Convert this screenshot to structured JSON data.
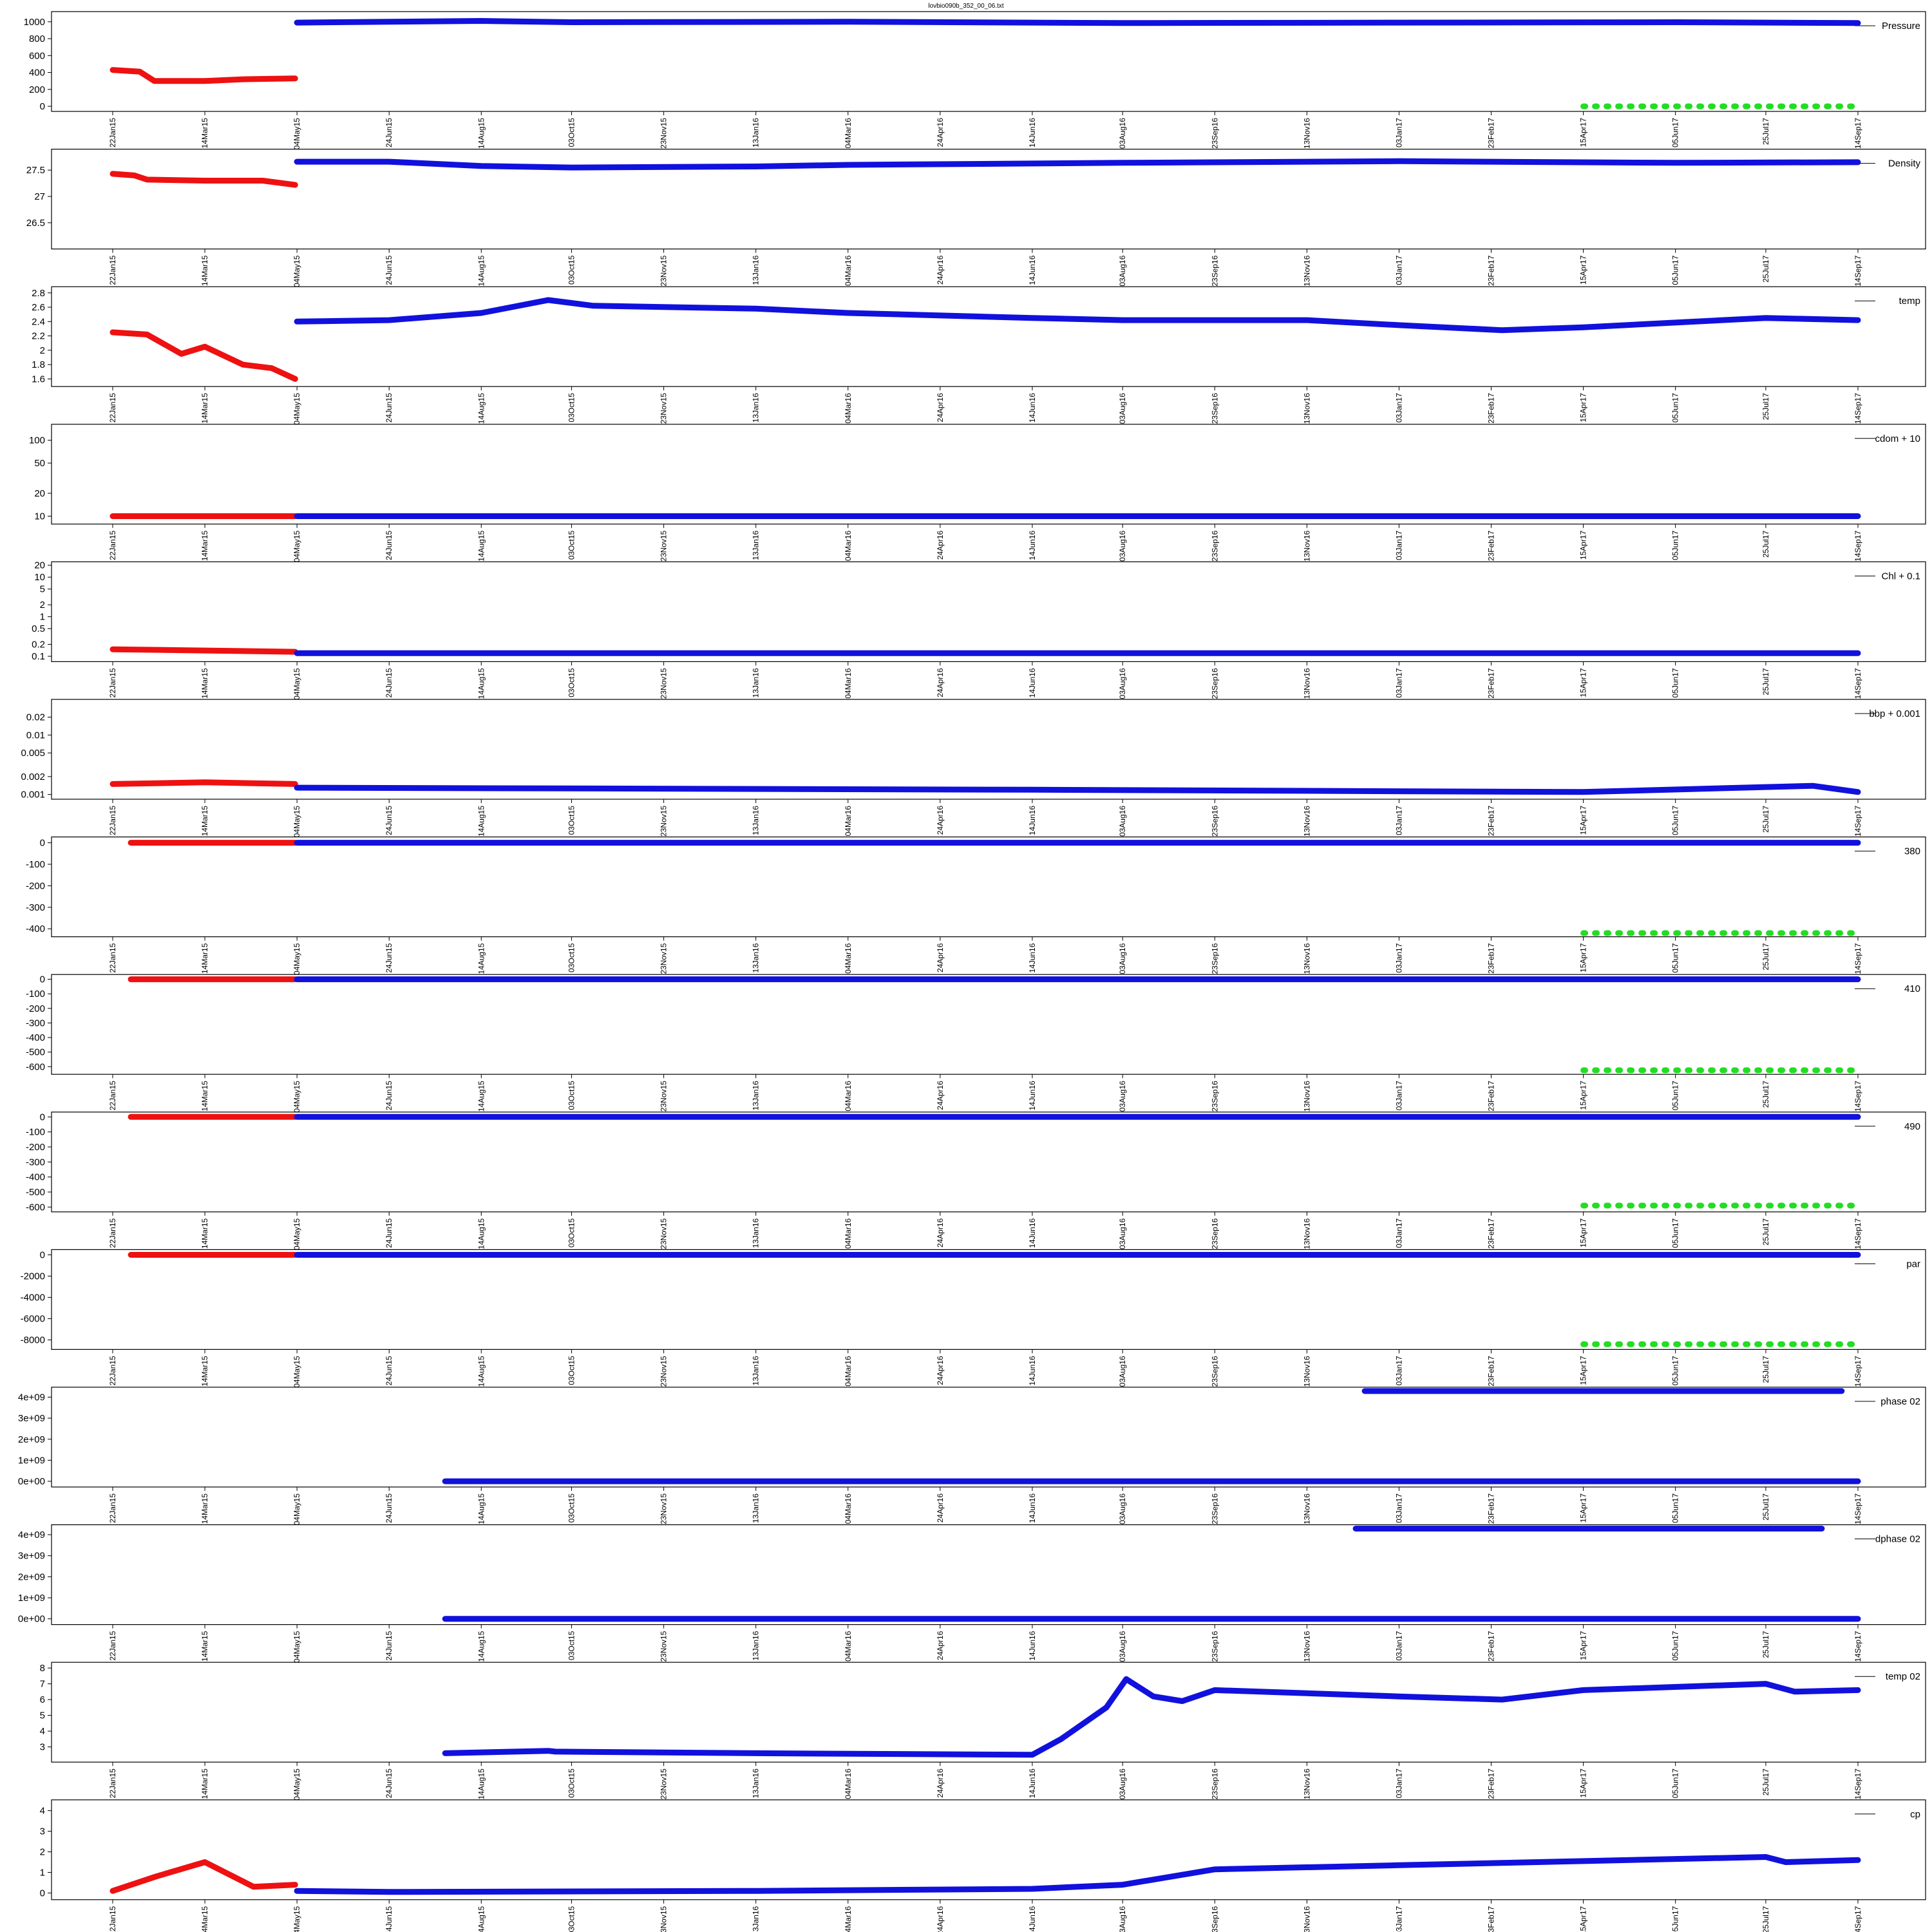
{
  "figure": {
    "title": "lovbio090b_352_00_06.txt"
  },
  "colors": {
    "red": "#ee1111",
    "blue": "#1111dd",
    "green": "#22dd22",
    "frame": "#000000"
  },
  "x_date_ticks": [
    "22Jan15",
    "14Mar15",
    "04May15",
    "24Jun15",
    "14Aug15",
    "03Oct15",
    "23Nov15",
    "13Jan16",
    "04Mar16",
    "24Apr16",
    "14Jun16",
    "03Aug16",
    "23Sep16",
    "13Nov16",
    "03Jan17",
    "23Feb17",
    "15Apr17",
    "05Jun17",
    "25Jul17",
    "14Sep17"
  ],
  "chart_data": [
    {
      "type": "scatter",
      "legend": "Pressure",
      "scale": "linear",
      "yticks": [
        0,
        200,
        400,
        600,
        800,
        1000
      ],
      "ylim": [
        -30,
        1090
      ],
      "series": [
        {
          "color": "red",
          "x": [
            "2015-01-22",
            "2015-02-06",
            "2015-02-14",
            "2015-03-14",
            "2015-04-04",
            "2015-05-03"
          ],
          "y": [
            430,
            410,
            300,
            300,
            320,
            330
          ]
        },
        {
          "color": "blue",
          "x": [
            "2015-05-04",
            "2015-08-14",
            "2015-10-03",
            "2016-03-04",
            "2016-08-03",
            "2017-01-03",
            "2017-06-05",
            "2017-09-14"
          ],
          "y": [
            990,
            1010,
            995,
            1000,
            985,
            990,
            995,
            985
          ]
        },
        {
          "color": "green",
          "x": [
            "2017-04-15",
            "2017-09-14"
          ],
          "y": [
            0,
            0
          ]
        }
      ]
    },
    {
      "type": "scatter",
      "legend": "Density",
      "scale": "linear",
      "yticks": [
        26.5,
        27.0,
        27.5
      ],
      "ylim": [
        26.05,
        27.85
      ],
      "series": [
        {
          "color": "red",
          "x": [
            "2015-01-22",
            "2015-02-03",
            "2015-02-10",
            "2015-03-14",
            "2015-04-15",
            "2015-05-03"
          ],
          "y": [
            27.43,
            27.4,
            27.32,
            27.3,
            27.3,
            27.22
          ]
        },
        {
          "color": "blue",
          "x": [
            "2015-05-04",
            "2015-06-24",
            "2015-08-14",
            "2015-10-03",
            "2016-01-13",
            "2016-03-04",
            "2016-08-03",
            "2017-01-03",
            "2017-06-05",
            "2017-09-14"
          ],
          "y": [
            27.66,
            27.66,
            27.58,
            27.55,
            27.57,
            27.6,
            27.64,
            27.67,
            27.64,
            27.65
          ]
        }
      ]
    },
    {
      "type": "scatter",
      "legend": "temp",
      "scale": "linear",
      "yticks": [
        1.6,
        1.8,
        2.0,
        2.2,
        2.4,
        2.6,
        2.8
      ],
      "ylim": [
        1.53,
        2.85
      ],
      "series": [
        {
          "color": "red",
          "x": [
            "2015-01-22",
            "2015-02-10",
            "2015-03-01",
            "2015-03-14",
            "2015-04-04",
            "2015-04-20",
            "2015-05-03"
          ],
          "y": [
            2.25,
            2.22,
            1.95,
            2.05,
            1.8,
            1.75,
            1.6
          ]
        },
        {
          "color": "blue",
          "x": [
            "2015-05-04",
            "2015-06-24",
            "2015-08-14",
            "2015-09-20",
            "2015-10-15",
            "2016-01-13",
            "2016-03-04",
            "2016-06-14",
            "2016-08-03",
            "2016-11-13",
            "2017-01-03",
            "2017-03-01",
            "2017-04-15",
            "2017-07-25",
            "2017-09-14"
          ],
          "y": [
            2.4,
            2.42,
            2.52,
            2.7,
            2.62,
            2.58,
            2.52,
            2.45,
            2.42,
            2.42,
            2.35,
            2.28,
            2.32,
            2.45,
            2.42
          ]
        }
      ]
    },
    {
      "type": "scatter",
      "legend": "cdom + 10",
      "scale": "log",
      "yticks": [
        10,
        20,
        50,
        100
      ],
      "ylim": [
        8.5,
        150
      ],
      "series": [
        {
          "color": "red",
          "x": [
            "2015-01-22",
            "2015-03-14",
            "2015-04-25",
            "2015-05-03"
          ],
          "y": [
            10,
            10,
            10,
            10
          ]
        },
        {
          "color": "blue",
          "x": [
            "2015-05-04",
            "2016-01-13",
            "2017-09-14"
          ],
          "y": [
            10,
            10,
            10
          ]
        }
      ]
    },
    {
      "type": "scatter",
      "legend": "Chl + 0.1",
      "scale": "log",
      "yticks": [
        0.1,
        0.2,
        0.5,
        1.0,
        2.0,
        5.0,
        10.0,
        20.0
      ],
      "ylim": [
        0.085,
        21
      ],
      "series": [
        {
          "color": "red",
          "x": [
            "2015-01-22",
            "2015-03-14",
            "2015-05-03"
          ],
          "y": [
            0.15,
            0.14,
            0.13
          ]
        },
        {
          "color": "blue",
          "x": [
            "2015-05-04",
            "2016-01-13",
            "2017-09-14"
          ],
          "y": [
            0.12,
            0.12,
            0.12
          ]
        }
      ]
    },
    {
      "type": "scatter",
      "legend": "bbp + 0.001",
      "scale": "log",
      "yticks": [
        0.001,
        0.002,
        0.005,
        0.01,
        0.02
      ],
      "ylim": [
        0.00092,
        0.036
      ],
      "series": [
        {
          "color": "red",
          "x": [
            "2015-01-22",
            "2015-03-14",
            "2015-05-03"
          ],
          "y": [
            0.0015,
            0.0016,
            0.0015
          ]
        },
        {
          "color": "blue",
          "x": [
            "2015-05-04",
            "2016-06-14",
            "2017-04-15",
            "2017-08-20",
            "2017-09-14"
          ],
          "y": [
            0.0013,
            0.0012,
            0.0011,
            0.0014,
            0.0011
          ]
        }
      ]
    },
    {
      "type": "scatter",
      "legend": "380",
      "scale": "linear",
      "yticks": [
        -400,
        -300,
        -200,
        -100,
        0
      ],
      "ylim": [
        -425,
        15
      ],
      "series": [
        {
          "color": "red",
          "x": [
            "2015-02-01",
            "2015-05-03"
          ],
          "y": [
            0,
            0
          ]
        },
        {
          "color": "blue",
          "x": [
            "2015-05-04",
            "2017-09-14"
          ],
          "y": [
            0,
            0
          ]
        },
        {
          "color": "green",
          "x": [
            "2017-04-15",
            "2017-09-14"
          ],
          "y": [
            -420,
            -420
          ]
        }
      ]
    },
    {
      "type": "scatter",
      "legend": "410",
      "scale": "linear",
      "yticks": [
        -600,
        -500,
        -400,
        -300,
        -200,
        -100,
        0
      ],
      "ylim": [
        -635,
        15
      ],
      "series": [
        {
          "color": "red",
          "x": [
            "2015-02-01",
            "2015-05-03"
          ],
          "y": [
            0,
            0
          ]
        },
        {
          "color": "blue",
          "x": [
            "2015-05-04",
            "2017-09-14"
          ],
          "y": [
            0,
            0
          ]
        },
        {
          "color": "green",
          "x": [
            "2017-04-15",
            "2017-09-14"
          ],
          "y": [
            -625,
            -625
          ]
        }
      ]
    },
    {
      "type": "scatter",
      "legend": "490",
      "scale": "linear",
      "yticks": [
        -600,
        -500,
        -400,
        -300,
        -200,
        -100,
        0
      ],
      "ylim": [
        -615,
        15
      ],
      "series": [
        {
          "color": "red",
          "x": [
            "2015-02-01",
            "2015-05-03"
          ],
          "y": [
            0,
            0
          ]
        },
        {
          "color": "blue",
          "x": [
            "2015-05-04",
            "2017-09-14"
          ],
          "y": [
            0,
            0
          ]
        },
        {
          "color": "green",
          "x": [
            "2017-04-15",
            "2017-09-14"
          ],
          "y": [
            -590,
            -590
          ]
        }
      ]
    },
    {
      "type": "scatter",
      "legend": "par",
      "scale": "linear",
      "yticks": [
        -8000,
        -6000,
        -4000,
        -2000,
        0
      ],
      "ylim": [
        -8650,
        250
      ],
      "series": [
        {
          "color": "red",
          "x": [
            "2015-02-01",
            "2015-05-03"
          ],
          "y": [
            0,
            0
          ]
        },
        {
          "color": "blue",
          "x": [
            "2015-05-04",
            "2017-09-14"
          ],
          "y": [
            0,
            0
          ]
        },
        {
          "color": "green",
          "x": [
            "2017-04-15",
            "2017-09-14"
          ],
          "y": [
            -8400,
            -8400
          ]
        }
      ]
    },
    {
      "type": "scatter",
      "legend": "phase 02",
      "scale": "linear",
      "yticks": [
        0,
        1000000000.0,
        2000000000.0,
        3000000000.0,
        4000000000.0
      ],
      "ytick_labels": [
        "0e+00",
        "1e+09",
        "2e+09",
        "3e+09",
        "4e+09"
      ],
      "ylim": [
        -150000000.0,
        4350000000.0
      ],
      "series": [
        {
          "color": "blue",
          "x": [
            "2015-07-25",
            "2015-09-20",
            "2015-09-24",
            "2017-09-14"
          ],
          "y": [
            0,
            0,
            0,
            0
          ]
        },
        {
          "color": "blue",
          "x": [
            "2016-12-15",
            "2017-02-10",
            "2017-06-01",
            "2017-07-25",
            "2017-08-20",
            "2017-09-05"
          ],
          "y": [
            4290000000.0,
            4290000000.0,
            4290000000.0,
            4290000000.0,
            4290000000.0,
            4290000000.0
          ]
        }
      ]
    },
    {
      "type": "scatter",
      "legend": "dphase 02",
      "scale": "linear",
      "yticks": [
        0,
        1000000000.0,
        2000000000.0,
        3000000000.0,
        4000000000.0
      ],
      "ytick_labels": [
        "0e+00",
        "1e+09",
        "2e+09",
        "3e+09",
        "4e+09"
      ],
      "ylim": [
        -150000000.0,
        4350000000.0
      ],
      "series": [
        {
          "color": "blue",
          "x": [
            "2015-07-25",
            "2015-09-20",
            "2015-09-24",
            "2017-09-14"
          ],
          "y": [
            0,
            0,
            0,
            0
          ]
        },
        {
          "color": "blue",
          "x": [
            "2016-12-10",
            "2017-02-20",
            "2017-07-22",
            "2017-08-25"
          ],
          "y": [
            4290000000.0,
            4290000000.0,
            4290000000.0,
            4290000000.0
          ]
        }
      ]
    },
    {
      "type": "scatter",
      "legend": "temp 02",
      "scale": "linear",
      "yticks": [
        3,
        4,
        5,
        6,
        7,
        8
      ],
      "ylim": [
        2.2,
        8.2
      ],
      "series": [
        {
          "color": "blue",
          "x": [
            "2015-07-25",
            "2015-09-20",
            "2015-09-24",
            "2016-01-13",
            "2016-06-14",
            "2016-06-30",
            "2016-07-25",
            "2016-08-05",
            "2016-08-20",
            "2016-09-05",
            "2016-09-23",
            "2016-11-13",
            "2017-01-03",
            "2017-03-01",
            "2017-04-15",
            "2017-07-25",
            "2017-08-10",
            "2017-09-14"
          ],
          "y": [
            2.6,
            2.75,
            2.7,
            2.6,
            2.5,
            3.5,
            5.5,
            7.3,
            6.2,
            5.9,
            6.6,
            6.4,
            6.2,
            6.0,
            6.6,
            7.0,
            6.5,
            6.6
          ]
        }
      ]
    },
    {
      "type": "scatter",
      "legend": "cp",
      "scale": "linear",
      "yticks": [
        0,
        1,
        2,
        3,
        4
      ],
      "ylim": [
        -0.2,
        4.4
      ],
      "series": [
        {
          "color": "red",
          "x": [
            "2015-01-22",
            "2015-02-15",
            "2015-03-14",
            "2015-04-10",
            "2015-05-03"
          ],
          "y": [
            0.1,
            0.8,
            1.5,
            0.3,
            0.4
          ]
        },
        {
          "color": "blue",
          "x": [
            "2015-05-04",
            "2015-06-24",
            "2016-01-13",
            "2016-06-14",
            "2016-08-03",
            "2016-09-23",
            "2017-01-03",
            "2017-04-15",
            "2017-07-25",
            "2017-08-05",
            "2017-09-14"
          ],
          "y": [
            0.1,
            0.05,
            0.1,
            0.2,
            0.4,
            1.15,
            1.35,
            1.55,
            1.75,
            1.5,
            1.6
          ]
        }
      ]
    }
  ]
}
